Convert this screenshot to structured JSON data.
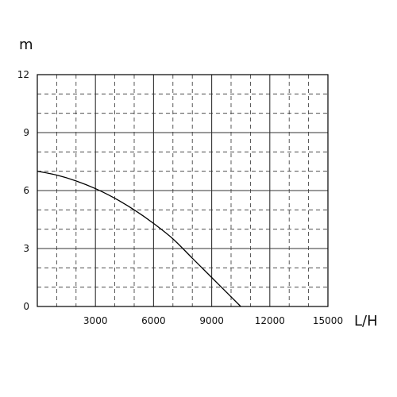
{
  "chart_data": {
    "type": "line",
    "title": "",
    "xlabel": "L/H",
    "ylabel": "m",
    "xlim": [
      0,
      15000
    ],
    "ylim": [
      0,
      12
    ],
    "x_ticks": [
      "3000",
      "6000",
      "9000",
      "12000",
      "15000"
    ],
    "y_ticks": [
      "0",
      "3",
      "6",
      "9",
      "12"
    ],
    "x_major_step": 3000,
    "x_minor_step": 1000,
    "y_major_step": 3,
    "y_minor_step": 1,
    "grid": true,
    "legend": "none",
    "series": [
      {
        "x": [
          0,
          1000,
          2000,
          3000,
          4000,
          5000,
          6000,
          7000,
          8000,
          9000,
          10000,
          10500
        ],
        "y": [
          7.0,
          6.8,
          6.5,
          6.1,
          5.6,
          5.0,
          4.3,
          3.5,
          2.5,
          1.5,
          0.5,
          0.0
        ],
        "color": "#000000"
      }
    ]
  }
}
